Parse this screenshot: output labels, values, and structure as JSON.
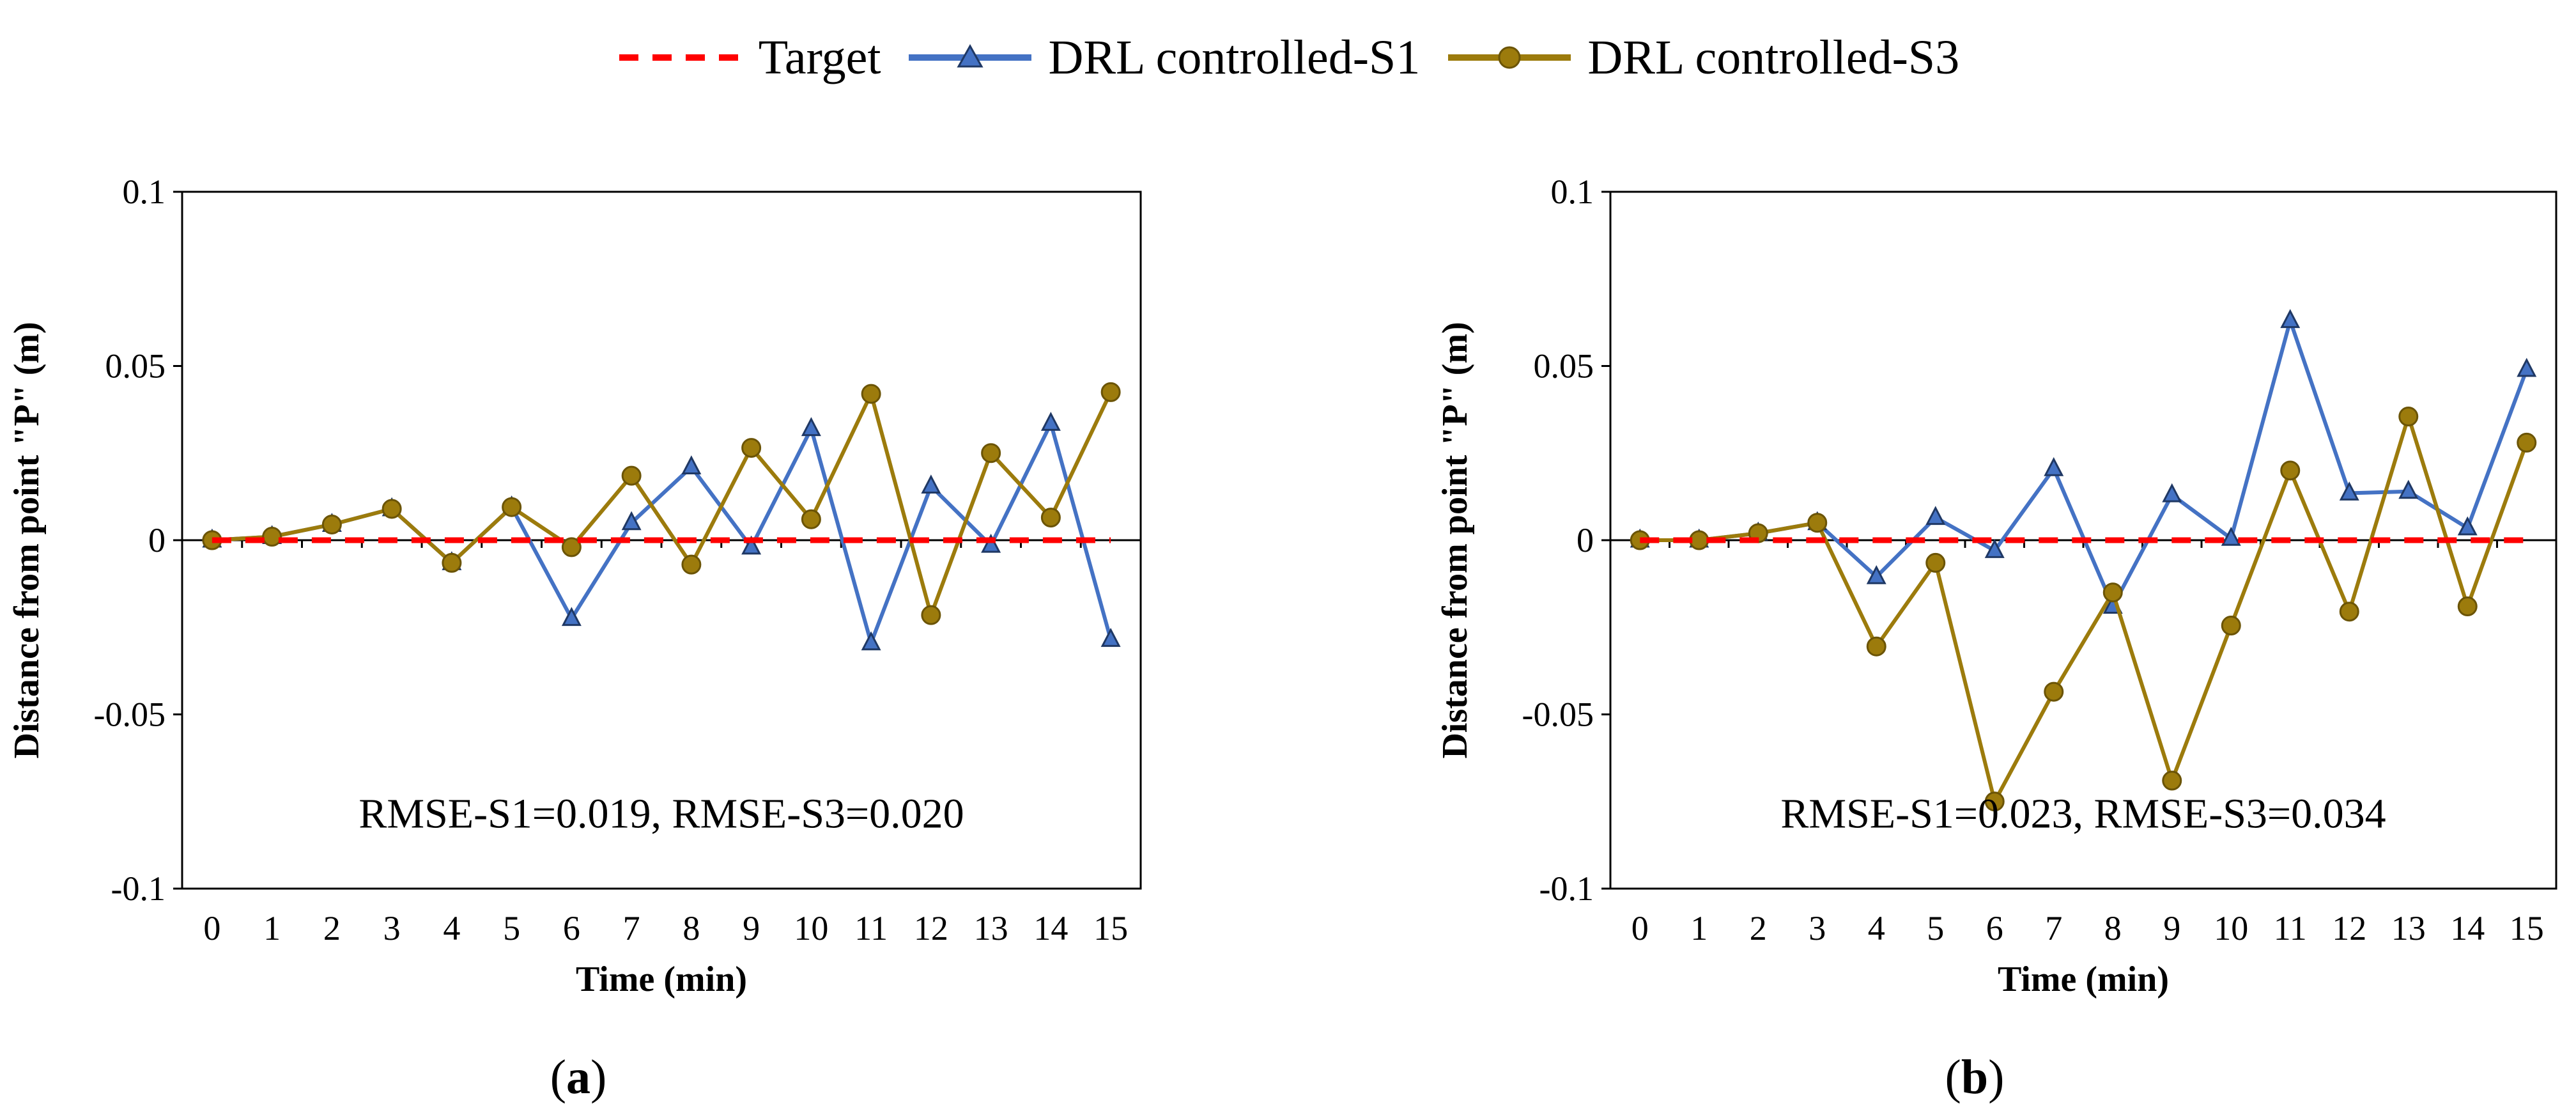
{
  "legend": [
    {
      "name": "Target",
      "color": "#ff0000",
      "style": "dashed",
      "marker": "none"
    },
    {
      "name": "DRL controlled-S1",
      "color": "#4472c4",
      "style": "solid",
      "marker": "triangle"
    },
    {
      "name": "DRL controlled-S3",
      "color": "#9c7b0c",
      "style": "solid",
      "marker": "circle"
    }
  ],
  "chart_data": [
    {
      "type": "line",
      "panel": "a",
      "panel_label": "a",
      "xlabel": "Time (min)",
      "ylabel": "Distance from point \"P\" (m)",
      "x": [
        0,
        1,
        2,
        3,
        4,
        5,
        6,
        7,
        8,
        9,
        10,
        11,
        12,
        13,
        14,
        15
      ],
      "ylim": [
        -0.1,
        0.1
      ],
      "yticks": [
        "0.1",
        "0.05",
        "0",
        "-0.05",
        "-0.1"
      ],
      "yticks_values": [
        0.1,
        0.05,
        0,
        -0.05,
        -0.1
      ],
      "annotation": "RMSE-S1=0.019, RMSE-S3=0.020",
      "series": [
        {
          "name": "Target",
          "values": [
            0,
            0,
            0,
            0,
            0,
            0,
            0,
            0,
            0,
            0,
            0,
            0,
            0,
            0,
            0,
            0
          ]
        },
        {
          "name": "DRL controlled-S1",
          "values": [
            0,
            0.001,
            0.0045,
            0.009,
            -0.0065,
            0.0095,
            -0.0225,
            0.005,
            0.021,
            -0.002,
            0.032,
            -0.0295,
            0.0155,
            -0.0015,
            0.0335,
            -0.0285
          ]
        },
        {
          "name": "DRL controlled-S3",
          "values": [
            0,
            0.001,
            0.0045,
            0.009,
            -0.0065,
            0.0095,
            -0.002,
            0.0185,
            -0.007,
            0.0265,
            0.006,
            0.042,
            -0.0215,
            0.025,
            0.0065,
            0.0425
          ]
        }
      ]
    },
    {
      "type": "line",
      "panel": "b",
      "panel_label": "b",
      "xlabel": "Time (min)",
      "ylabel": "Distance from point \"P\" (m)",
      "x": [
        0,
        1,
        2,
        3,
        4,
        5,
        6,
        7,
        8,
        9,
        10,
        11,
        12,
        13,
        14,
        15
      ],
      "ylim": [
        -0.1,
        0.1
      ],
      "yticks": [
        "0.1",
        "0.05",
        "0",
        "-0.05",
        "-0.1"
      ],
      "yticks_values": [
        0.1,
        0.05,
        0,
        -0.05,
        -0.1
      ],
      "annotation": "RMSE-S1=0.023, RMSE-S3=0.034",
      "series": [
        {
          "name": "Target",
          "values": [
            0,
            0,
            0,
            0,
            0,
            0,
            0,
            0,
            0,
            0,
            0,
            0,
            0,
            0,
            0,
            0
          ]
        },
        {
          "name": "DRL controlled-S1",
          "values": [
            0,
            0,
            0.002,
            0.005,
            -0.0105,
            0.0065,
            -0.003,
            0.0205,
            -0.019,
            0.013,
            0.0005,
            0.063,
            0.0135,
            0.014,
            0.0035,
            0.049
          ]
        },
        {
          "name": "DRL controlled-S3",
          "values": [
            0,
            0,
            0.002,
            0.005,
            -0.0305,
            -0.0065,
            -0.075,
            -0.0435,
            -0.015,
            -0.069,
            -0.0245,
            0.02,
            -0.0205,
            0.0355,
            -0.019,
            0.028
          ]
        }
      ]
    }
  ]
}
